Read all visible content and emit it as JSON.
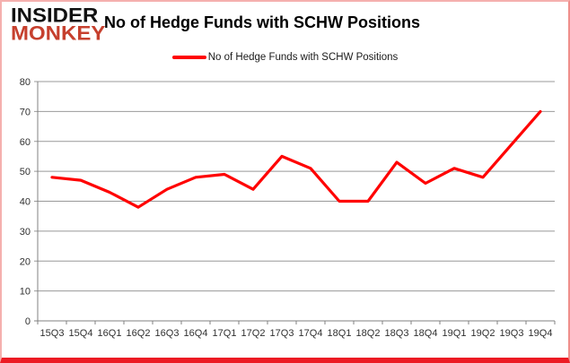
{
  "logo": {
    "line1": "INSIDER",
    "line2": "MONKEY",
    "accent_color": "#c6402e"
  },
  "header": {
    "title": "No of Hedge Funds with SCHW Positions"
  },
  "legend": {
    "label": "No of Hedge Funds with SCHW Positions",
    "color": "#ff0000"
  },
  "chart_data": {
    "type": "line",
    "title": "No of Hedge Funds with SCHW Positions",
    "categories": [
      "15Q3",
      "15Q4",
      "16Q1",
      "16Q2",
      "16Q3",
      "16Q4",
      "17Q1",
      "17Q2",
      "17Q3",
      "17Q4",
      "18Q1",
      "18Q2",
      "18Q3",
      "18Q4",
      "19Q1",
      "19Q2",
      "19Q3",
      "19Q4"
    ],
    "series": [
      {
        "name": "No of Hedge Funds with SCHW Positions",
        "color": "#ff0000",
        "values": [
          48,
          47,
          43,
          38,
          44,
          48,
          49,
          44,
          55,
          51,
          40,
          40,
          53,
          46,
          51,
          48,
          59,
          70
        ]
      }
    ],
    "xlabel": "",
    "ylabel": "",
    "ylim": [
      0,
      80
    ],
    "ytick_step": 10,
    "grid": "horizontal",
    "gridline_color": "#999999",
    "axis_color": "#808080",
    "legend_position": "top-center",
    "line_width": 3.2
  }
}
